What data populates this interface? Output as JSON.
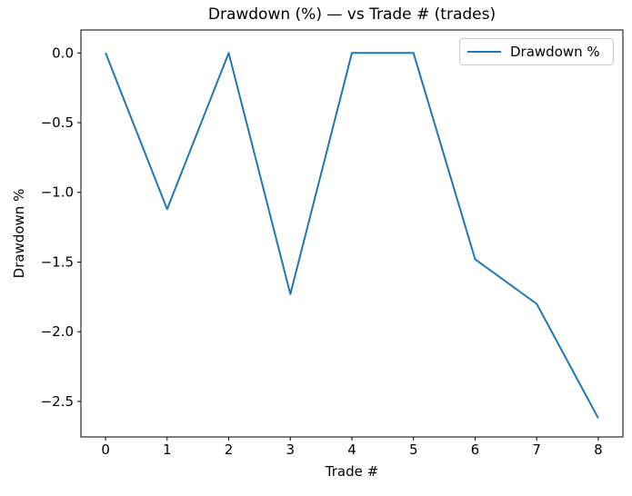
{
  "chart_data": {
    "type": "line",
    "title": "Drawdown (%) — vs Trade # (trades)",
    "xlabel": "Trade #",
    "ylabel": "Drawdown %",
    "legend": [
      "Drawdown %"
    ],
    "legend_position": "upper right",
    "grid": false,
    "background": "#ffffff",
    "axis_color": "#000000",
    "x": [
      0,
      1,
      2,
      3,
      4,
      5,
      6,
      7,
      8
    ],
    "series": [
      {
        "name": "Drawdown %",
        "color": "#1f77b4",
        "values": [
          0.0,
          -1.12,
          0.0,
          -1.73,
          0.0,
          0.0,
          -1.48,
          -1.8,
          -2.62
        ]
      }
    ],
    "xlim": [
      -0.4,
      8.4
    ],
    "ylim": [
      -2.755,
      0.165
    ],
    "xticks": [
      0,
      1,
      2,
      3,
      4,
      5,
      6,
      7,
      8
    ],
    "xtick_labels": [
      "0",
      "1",
      "2",
      "3",
      "4",
      "5",
      "6",
      "7",
      "8"
    ],
    "yticks": [
      0.0,
      -0.5,
      -1.0,
      -1.5,
      -2.0,
      -2.5
    ],
    "ytick_labels": [
      "0.0",
      "−0.5",
      "−1.0",
      "−1.5",
      "−2.0",
      "−2.5"
    ]
  }
}
